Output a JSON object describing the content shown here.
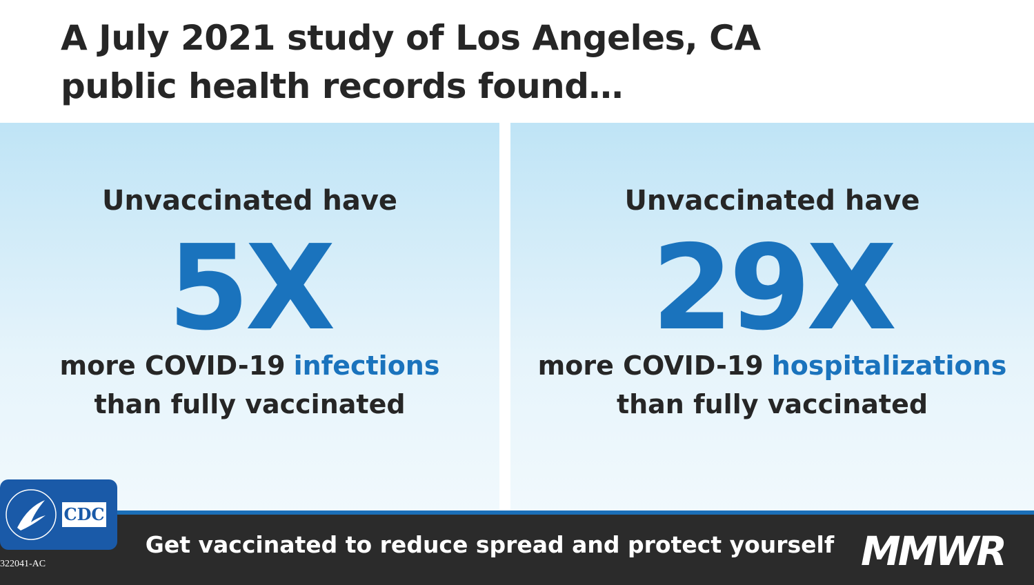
{
  "header": {
    "title_lines": [
      "A July 2021 study of Los Angeles, CA",
      "public health records found…"
    ]
  },
  "panels": [
    {
      "intro": "Unvaccinated have",
      "figure": "5X",
      "line1": "more COVID-19",
      "highlight": "infections",
      "line2": "than fully vaccinated"
    },
    {
      "intro": "Unvaccinated have",
      "figure": "29X",
      "line1": "more COVID-19",
      "highlight": "hospitalizations",
      "line2": "than fully vaccinated"
    }
  ],
  "footer": {
    "message": "Get vaccinated to reduce spread and protect yourself",
    "brand": "MMWR",
    "logo": "CDC",
    "code": "322041-AC"
  }
}
